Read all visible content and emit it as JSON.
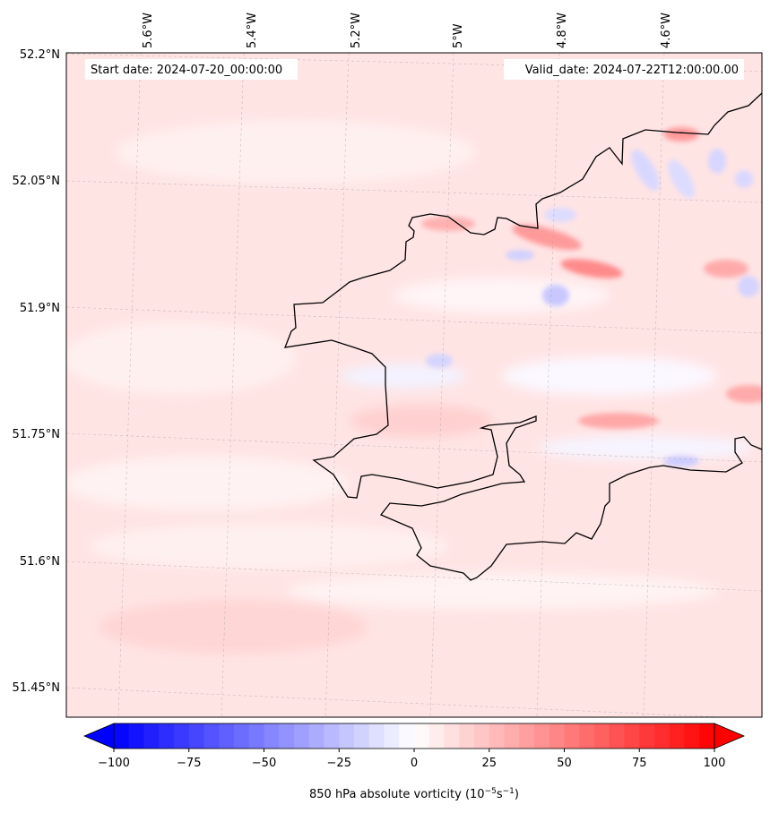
{
  "header": {
    "start_date": "Start date: 2024-07-20_00:00:00",
    "valid_date": "Valid_date: 2024-07-22T12:00:00.00"
  },
  "axes": {
    "lon_labels": [
      "5.6°W",
      "5.4°W",
      "5.2°W",
      "5°W",
      "4.8°W",
      "4.6°W"
    ],
    "lat_labels": [
      "52.2°N",
      "52.05°N",
      "51.9°N",
      "51.75°N",
      "51.6°N",
      "51.45°N"
    ]
  },
  "colorbar": {
    "ticks": [
      "−100",
      "−75",
      "−50",
      "−25",
      "0",
      "25",
      "50",
      "75",
      "100"
    ],
    "label": "850 hPa absolute vorticity (10",
    "label_exp1": "−5",
    "label_mid": "s",
    "label_exp2": "−1",
    "label_end": ")",
    "min_color": "#0000ff",
    "max_color": "#ff0000",
    "range": [
      -100,
      100
    ]
  },
  "colors": {
    "background_field": "#ffe6e6",
    "coastline": "#000000"
  }
}
